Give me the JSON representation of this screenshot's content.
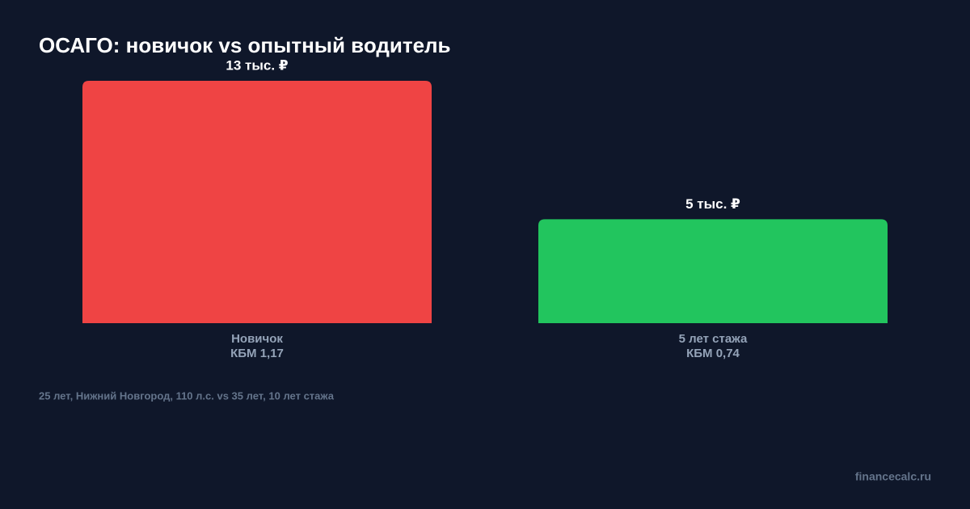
{
  "chart_data": {
    "type": "bar",
    "title": "ОСАГО: новичок vs опытный водитель",
    "categories": [
      [
        "Новичок",
        "КБМ 1,17"
      ],
      [
        "5 лет стажа",
        "КБМ 0,74"
      ]
    ],
    "values": [
      12.6,
      5.4
    ],
    "value_labels": [
      "13 тыс. ₽",
      "5 тыс. ₽"
    ],
    "colors": [
      "#ef4444",
      "#22c55e"
    ],
    "note": "25 лет, Нижний Новгород, 110 л.с. vs 35 лет, 10 лет стажа",
    "source": "financecalc.ru"
  }
}
